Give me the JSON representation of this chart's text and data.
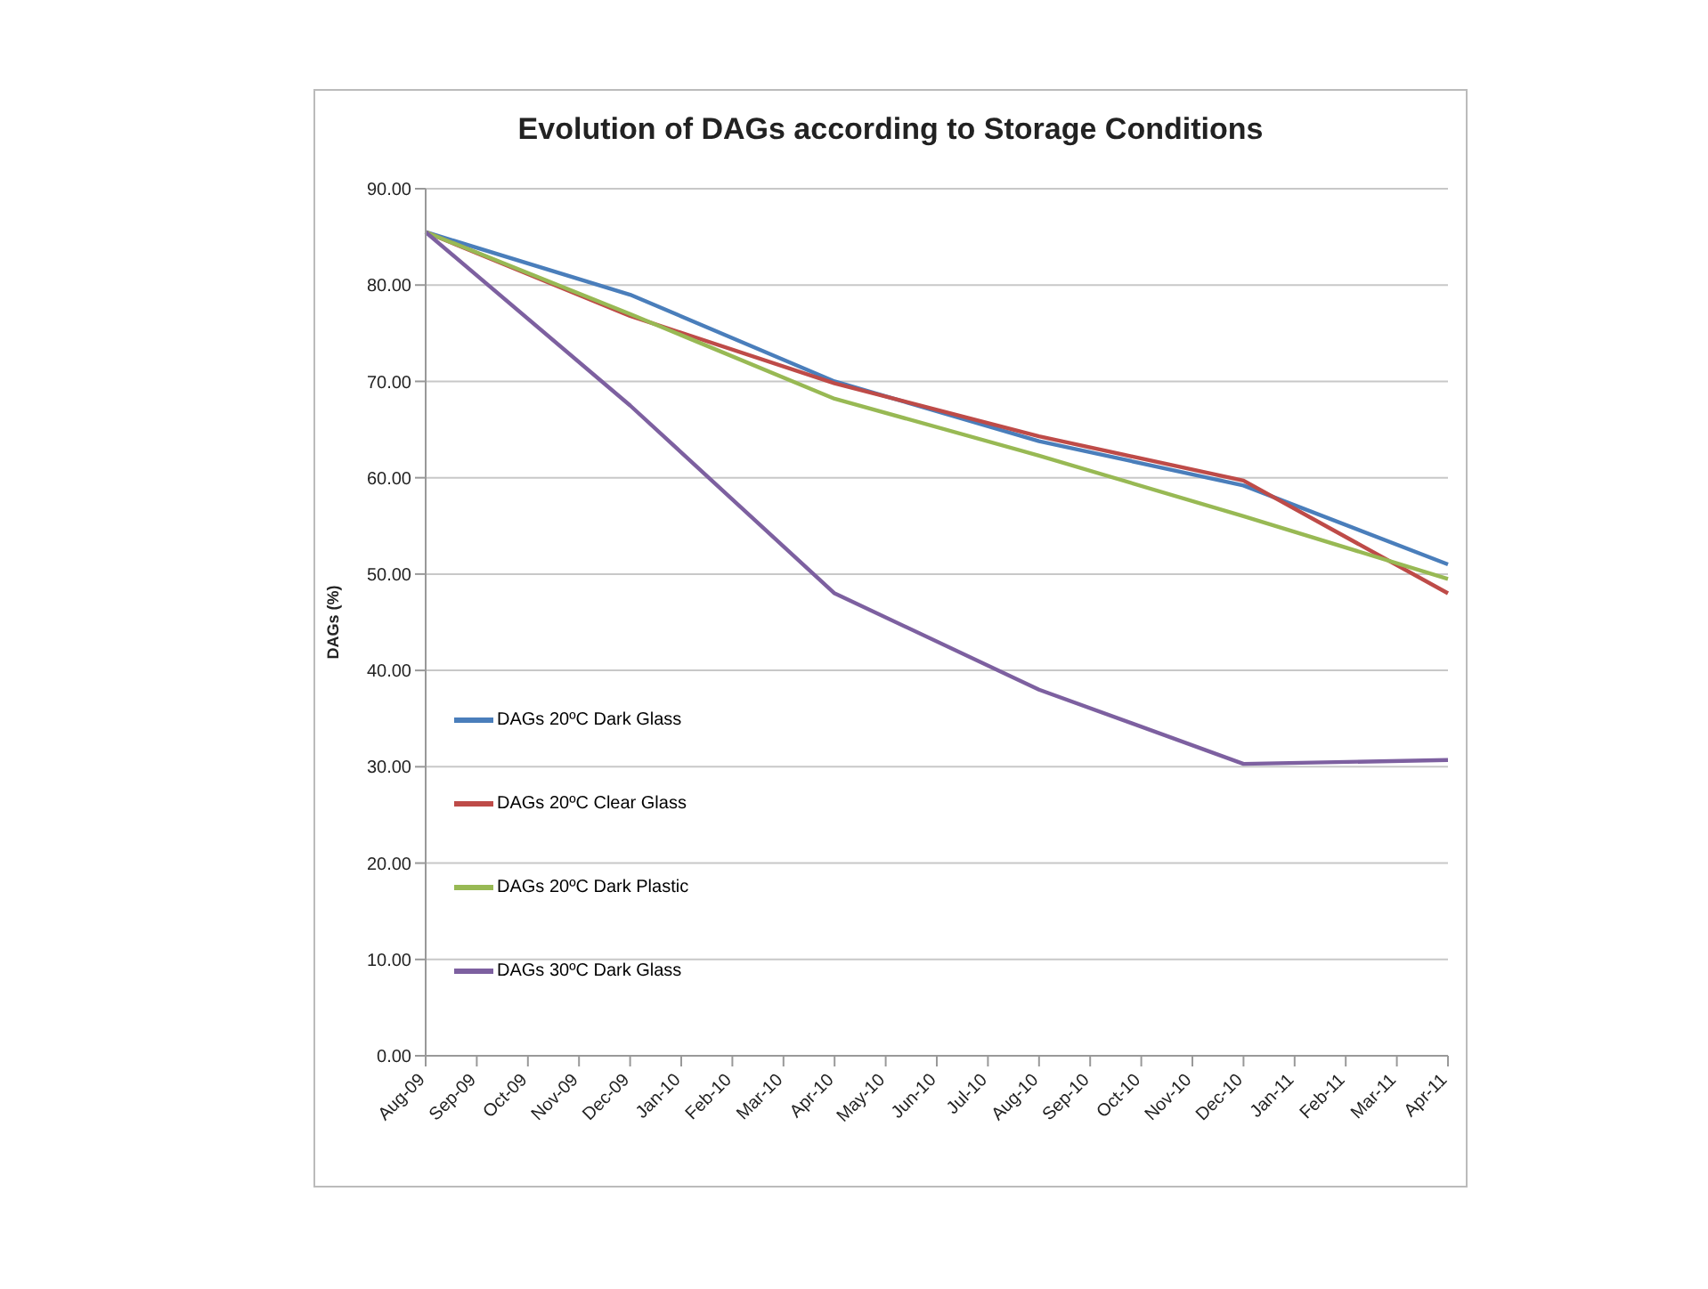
{
  "chart_data": {
    "type": "line",
    "title": "Evolution of DAGs according to Storage Conditions",
    "ylabel": "DAGs (%)",
    "categories": [
      "Aug-09",
      "Sep-09",
      "Oct-09",
      "Nov-09",
      "Dec-09",
      "Jan-10",
      "Feb-10",
      "Mar-10",
      "Apr-10",
      "May-10",
      "Jun-10",
      "Jul-10",
      "Aug-10",
      "Sep-10",
      "Oct-10",
      "Nov-10",
      "Dec-10",
      "Jan-11",
      "Feb-11",
      "Mar-11",
      "Apr-11"
    ],
    "series": [
      {
        "name": "DAGs 20ºC Dark Glass",
        "color": "#4a7ebb",
        "values": [
          85.5,
          null,
          null,
          null,
          79,
          null,
          null,
          null,
          70,
          null,
          null,
          null,
          63.8,
          null,
          null,
          null,
          59.2,
          null,
          null,
          null,
          51
        ]
      },
      {
        "name": "DAGs 20ºC Clear Glass",
        "color": "#be4b48",
        "values": [
          85.5,
          null,
          null,
          null,
          76.8,
          null,
          null,
          null,
          69.8,
          null,
          null,
          null,
          64.3,
          null,
          null,
          null,
          59.7,
          null,
          null,
          null,
          48
        ]
      },
      {
        "name": "DAGs 20ºC Dark Plastic",
        "color": "#98b954",
        "values": [
          85.5,
          null,
          null,
          null,
          77,
          null,
          null,
          null,
          68.2,
          null,
          null,
          null,
          62.3,
          null,
          null,
          null,
          56,
          null,
          null,
          null,
          49.5
        ]
      },
      {
        "name": "DAGs 30ºC Dark Glass",
        "color": "#7d60a0",
        "values": [
          85.5,
          null,
          null,
          null,
          67.5,
          null,
          null,
          null,
          48,
          null,
          null,
          null,
          38,
          null,
          null,
          null,
          30.3,
          null,
          null,
          null,
          30.7
        ]
      }
    ],
    "ylim": [
      0,
      90
    ],
    "yticks": [
      {
        "value": 0,
        "label": "0.00"
      },
      {
        "value": 10,
        "label": "10.00"
      },
      {
        "value": 20,
        "label": "20.00"
      },
      {
        "value": 30,
        "label": "30.00"
      },
      {
        "value": 40,
        "label": "40.00"
      },
      {
        "value": 50,
        "label": "50.00"
      },
      {
        "value": 60,
        "label": "60.00"
      },
      {
        "value": 70,
        "label": "70.00"
      },
      {
        "value": 80,
        "label": "80.00"
      },
      {
        "value": 90,
        "label": "90.00"
      }
    ],
    "grid": "y",
    "legend": "left",
    "marker": "none",
    "line_style": "solid"
  }
}
